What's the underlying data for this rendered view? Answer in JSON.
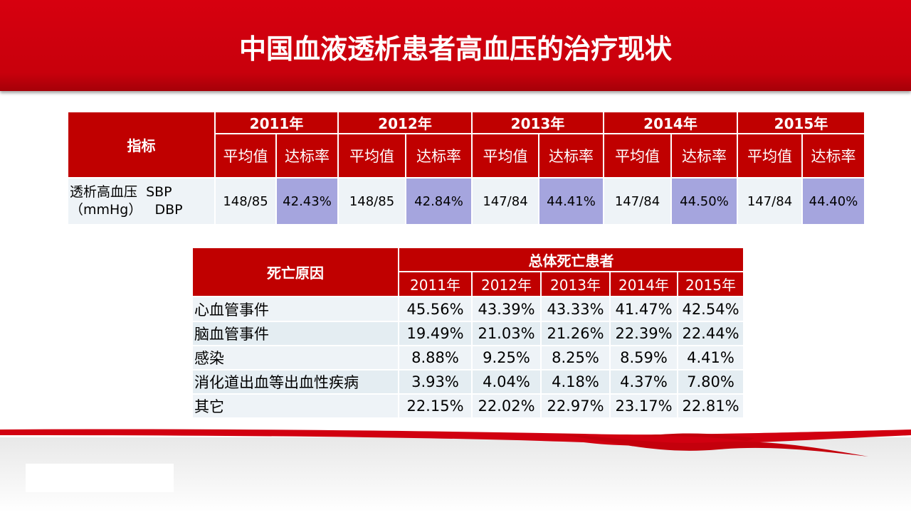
{
  "title": "中国血液透析患者高血压的治疗现状",
  "table1": {
    "corner": "指标",
    "years": [
      "2011年",
      "2012年",
      "2013年",
      "2014年",
      "2015年"
    ],
    "subheaders": [
      [
        "平均值",
        "达标率"
      ],
      [
        "平均值",
        "达标率"
      ],
      [
        "平均值",
        "达标率"
      ],
      [
        "平均值",
        "达标率"
      ],
      [
        "平均值",
        "达标率"
      ]
    ],
    "row_label": [
      "透析高血压  SBP",
      "（mmHg）   DBP"
    ],
    "values": [
      "148/85",
      "42.43%",
      "148/85",
      "42.84%",
      "147/84",
      "44.41%",
      "147/84",
      "44.50%",
      "147/84",
      "44.40%"
    ]
  },
  "table2": {
    "corner": "死亡原因",
    "group": "总体死亡患者",
    "years": [
      "2011年",
      "2012年",
      "2013年",
      "2014年",
      "2015年"
    ],
    "rows": [
      {
        "label": "心血管事件",
        "values": [
          "45.56%",
          "43.39%",
          "43.33%",
          "41.47%",
          "42.54%"
        ]
      },
      {
        "label": "脑血管事件",
        "values": [
          "19.49%",
          "21.03%",
          "21.26%",
          "22.39%",
          "22.44%"
        ]
      },
      {
        "label": "感染",
        "values": [
          "8.88%",
          "9.25%",
          "8.25%",
          "8.59%",
          "4.41%"
        ]
      },
      {
        "label": "消化道出血等出血性疾病",
        "values": [
          "3.93%",
          "4.04%",
          "4.18%",
          "4.37%",
          "7.80%"
        ]
      },
      {
        "label": "其它",
        "values": [
          "22.15%",
          "22.02%",
          "22.97%",
          "23.17%",
          "22.81%"
        ]
      }
    ]
  }
}
